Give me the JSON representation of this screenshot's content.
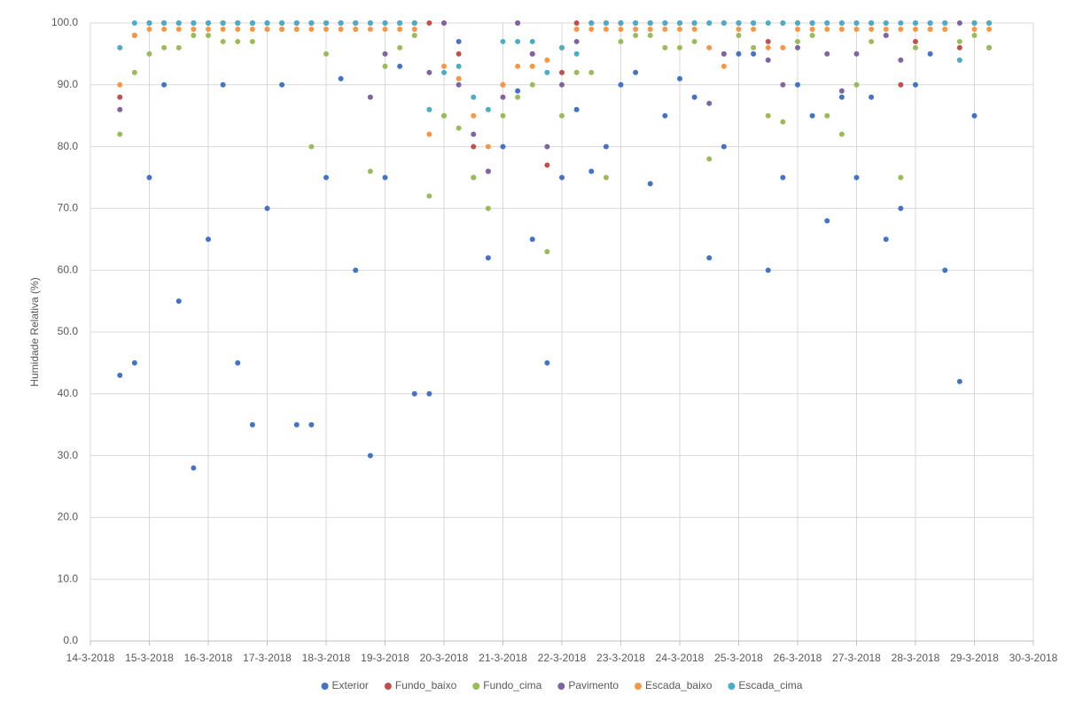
{
  "chart_data": {
    "type": "scatter",
    "y_label": "Humidade Relativa (%)",
    "ylim": [
      0,
      100
    ],
    "yticks": [
      {
        "value": 0,
        "label": "0.0"
      },
      {
        "value": 10,
        "label": "10.0"
      },
      {
        "value": 20,
        "label": "20.0"
      },
      {
        "value": 30,
        "label": "30.0"
      },
      {
        "value": 40,
        "label": "40.0"
      },
      {
        "value": 50,
        "label": "50.0"
      },
      {
        "value": 60,
        "label": "60.0"
      },
      {
        "value": 70,
        "label": "70.0"
      },
      {
        "value": 80,
        "label": "80.0"
      },
      {
        "value": 90,
        "label": "90.0"
      },
      {
        "value": 100,
        "label": "100.0"
      }
    ],
    "xlim": [
      43173,
      43189
    ],
    "xticks": [
      {
        "value": 43173,
        "label": "14-3-2018"
      },
      {
        "value": 43174,
        "label": "15-3-2018"
      },
      {
        "value": 43175,
        "label": "16-3-2018"
      },
      {
        "value": 43176,
        "label": "17-3-2018"
      },
      {
        "value": 43177,
        "label": "18-3-2018"
      },
      {
        "value": 43178,
        "label": "19-3-2018"
      },
      {
        "value": 43179,
        "label": "20-3-2018"
      },
      {
        "value": 43180,
        "label": "21-3-2018"
      },
      {
        "value": 43181,
        "label": "22-3-2018"
      },
      {
        "value": 43182,
        "label": "23-3-2018"
      },
      {
        "value": 43183,
        "label": "24-3-2018"
      },
      {
        "value": 43184,
        "label": "25-3-2018"
      },
      {
        "value": 43185,
        "label": "26-3-2018"
      },
      {
        "value": 43186,
        "label": "27-3-2018"
      },
      {
        "value": 43187,
        "label": "28-3-2018"
      },
      {
        "value": 43188,
        "label": "29-3-2018"
      },
      {
        "value": 43189,
        "label": "30-3-2018"
      }
    ],
    "grid": true,
    "legend": "bottom",
    "x": [
      43173.5,
      43173.75,
      43174,
      43174.25,
      43174.5,
      43174.75,
      43175,
      43175.25,
      43175.5,
      43175.75,
      43176,
      43176.25,
      43176.5,
      43176.75,
      43177,
      43177.25,
      43177.5,
      43177.75,
      43178,
      43178.25,
      43178.5,
      43178.75,
      43179,
      43179.25,
      43179.5,
      43179.75,
      43180,
      43180.25,
      43180.5,
      43180.75,
      43181,
      43181.25,
      43181.5,
      43181.75,
      43182,
      43182.25,
      43182.5,
      43182.75,
      43183,
      43183.25,
      43183.5,
      43183.75,
      43184,
      43184.25,
      43184.5,
      43184.75,
      43185,
      43185.25,
      43185.5,
      43185.75,
      43186,
      43186.25,
      43186.5,
      43186.75,
      43187,
      43187.25,
      43187.5,
      43187.75,
      43188,
      43188.25
    ],
    "series": [
      {
        "name": "Exterior",
        "color": "#4472c4",
        "values": [
          43,
          45,
          75,
          90,
          55,
          28,
          65,
          90,
          45,
          35,
          70,
          90,
          35,
          35,
          75,
          91,
          60,
          30,
          75,
          93,
          40,
          40,
          85,
          97,
          75,
          62,
          80,
          89,
          65,
          45,
          75,
          86,
          76,
          80,
          90,
          92,
          74,
          85,
          91,
          88,
          62,
          80,
          95,
          95,
          60,
          75,
          90,
          85,
          68,
          88,
          75,
          88,
          65,
          70,
          90,
          95,
          60,
          42,
          85,
          96
        ]
      },
      {
        "name": "Fundo_baixo",
        "color": "#c0504d",
        "values": [
          88,
          98,
          100,
          100,
          100,
          100,
          100,
          100,
          100,
          100,
          100,
          100,
          100,
          100,
          100,
          100,
          100,
          100,
          100,
          100,
          100,
          100,
          100,
          95,
          80,
          76,
          90,
          100,
          95,
          77,
          92,
          100,
          100,
          100,
          100,
          100,
          100,
          100,
          100,
          100,
          100,
          100,
          100,
          100,
          97,
          100,
          100,
          100,
          100,
          100,
          100,
          100,
          100,
          90,
          97,
          100,
          100,
          96,
          100,
          100
        ]
      },
      {
        "name": "Fundo_cima",
        "color": "#9bbb59",
        "values": [
          82,
          92,
          95,
          96,
          96,
          98,
          98,
          97,
          97,
          97,
          99,
          99,
          99,
          80,
          95,
          99,
          99,
          76,
          93,
          96,
          98,
          72,
          85,
          83,
          75,
          70,
          85,
          88,
          90,
          63,
          85,
          92,
          92,
          75,
          97,
          98,
          98,
          96,
          96,
          97,
          78,
          95,
          98,
          96,
          85,
          84,
          97,
          98,
          85,
          82,
          90,
          97,
          98,
          75,
          96,
          99,
          99,
          97,
          98,
          96
        ]
      },
      {
        "name": "Pavimento",
        "color": "#8064a2",
        "values": [
          86,
          98,
          100,
          100,
          100,
          100,
          100,
          100,
          100,
          100,
          100,
          100,
          100,
          100,
          100,
          100,
          100,
          88,
          95,
          100,
          100,
          92,
          100,
          90,
          82,
          76,
          88,
          100,
          95,
          80,
          90,
          97,
          100,
          100,
          100,
          100,
          100,
          100,
          100,
          100,
          87,
          95,
          100,
          100,
          94,
          90,
          96,
          100,
          95,
          89,
          95,
          100,
          98,
          94,
          100,
          100,
          100,
          100,
          100,
          100
        ]
      },
      {
        "name": "Escada_baixo",
        "color": "#f79646",
        "values": [
          90,
          98,
          99,
          99,
          99,
          99,
          99,
          99,
          99,
          99,
          99,
          99,
          99,
          99,
          99,
          99,
          99,
          99,
          99,
          99,
          99,
          82,
          93,
          91,
          85,
          80,
          90,
          93,
          93,
          94,
          96,
          99,
          99,
          99,
          99,
          99,
          99,
          99,
          99,
          99,
          96,
          93,
          99,
          99,
          96,
          96,
          99,
          99,
          99,
          99,
          99,
          99,
          99,
          99,
          99,
          99,
          99,
          94,
          99,
          99
        ]
      },
      {
        "name": "Escada_cima",
        "color": "#4bacc6",
        "values": [
          96,
          100,
          100,
          100,
          100,
          100,
          100,
          100,
          100,
          100,
          100,
          100,
          100,
          100,
          100,
          100,
          100,
          100,
          100,
          100,
          100,
          86,
          92,
          93,
          88,
          86,
          97,
          97,
          97,
          92,
          96,
          95,
          100,
          100,
          100,
          100,
          100,
          100,
          100,
          100,
          100,
          100,
          100,
          100,
          100,
          100,
          100,
          100,
          100,
          100,
          100,
          100,
          100,
          100,
          100,
          100,
          100,
          94,
          100,
          100
        ]
      }
    ]
  }
}
